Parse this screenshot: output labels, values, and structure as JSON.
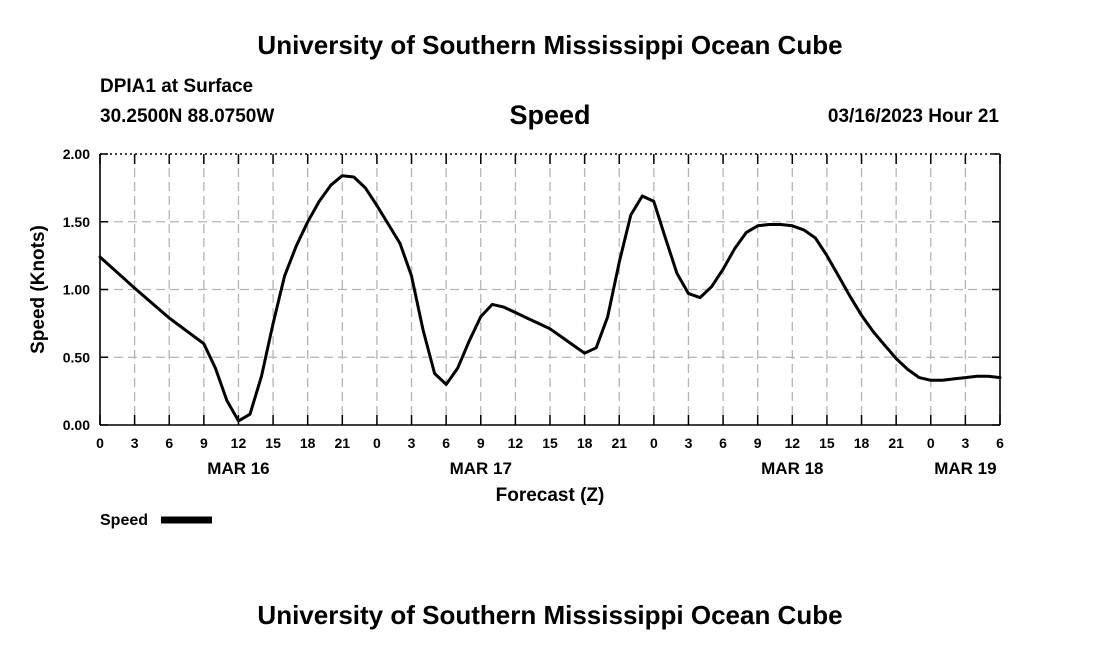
{
  "header": {
    "title": "University of Southern Mississippi Ocean Cube",
    "footer_title": "University of Southern Mississippi Ocean Cube",
    "station": "DPIA1 at Surface",
    "coords": "30.2500N  88.0750W",
    "datetime": "03/16/2023 Hour 21"
  },
  "chart_data": {
    "type": "line",
    "title": "Speed",
    "xlabel": "Forecast (Z)",
    "ylabel": "Speed (Knots)",
    "xlim": [
      0,
      78
    ],
    "ylim": [
      0,
      2
    ],
    "grid": true,
    "x_tick_labels": [
      "0",
      "3",
      "6",
      "9",
      "12",
      "15",
      "18",
      "21",
      "0",
      "3",
      "6",
      "9",
      "12",
      "15",
      "18",
      "21",
      "0",
      "3",
      "6",
      "9",
      "12",
      "15",
      "18",
      "21",
      "0",
      "3",
      "6"
    ],
    "day_labels": [
      {
        "label": "MAR 16",
        "hour": 12
      },
      {
        "label": "MAR 17",
        "hour": 33
      },
      {
        "label": "MAR 18",
        "hour": 60
      },
      {
        "label": "MAR 19",
        "hour": 75
      }
    ],
    "y_ticks": [
      {
        "value": 0,
        "label": "0.00"
      },
      {
        "value": 0.5,
        "label": "0.50"
      },
      {
        "value": 1,
        "label": "1.00"
      },
      {
        "value": 1.5,
        "label": "1.50"
      },
      {
        "value": 2,
        "label": "2.00"
      }
    ],
    "series": [
      {
        "name": "Speed",
        "color": "#000000",
        "x": [
          0,
          3,
          6,
          9,
          10,
          11,
          12,
          13,
          14,
          15,
          16,
          17,
          18,
          19,
          20,
          21,
          22,
          23,
          24,
          25,
          26,
          27,
          28,
          29,
          30,
          31,
          32,
          33,
          34,
          35,
          36,
          37,
          38,
          39,
          40,
          41,
          42,
          43,
          44,
          45,
          46,
          47,
          48,
          49,
          50,
          51,
          52,
          53,
          54,
          55,
          56,
          57,
          58,
          59,
          60,
          61,
          62,
          63,
          64,
          65,
          66,
          67,
          68,
          69,
          70,
          71,
          72,
          73,
          74,
          75,
          76,
          77,
          78
        ],
        "values": [
          1.24,
          1.01,
          0.79,
          0.6,
          0.42,
          0.18,
          0.03,
          0.08,
          0.36,
          0.75,
          1.1,
          1.32,
          1.5,
          1.65,
          1.77,
          1.84,
          1.83,
          1.75,
          1.62,
          1.48,
          1.34,
          1.1,
          0.7,
          0.38,
          0.3,
          0.42,
          0.62,
          0.8,
          0.89,
          0.87,
          0.83,
          0.79,
          0.75,
          0.71,
          0.65,
          0.59,
          0.53,
          0.57,
          0.8,
          1.2,
          1.55,
          1.69,
          1.65,
          1.38,
          1.12,
          0.97,
          0.94,
          1.02,
          1.15,
          1.3,
          1.42,
          1.47,
          1.48,
          1.48,
          1.47,
          1.44,
          1.38,
          1.25,
          1.1,
          0.95,
          0.81,
          0.69,
          0.59,
          0.49,
          0.41,
          0.35,
          0.33,
          0.33,
          0.34,
          0.35,
          0.36,
          0.36,
          0.35
        ]
      }
    ],
    "legend": {
      "label": "Speed",
      "position": "bottom-left"
    }
  }
}
